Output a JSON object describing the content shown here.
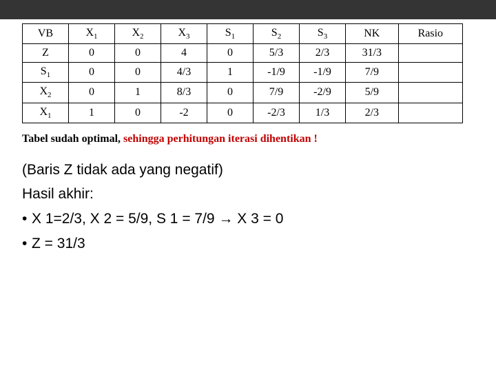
{
  "table": {
    "headers": [
      "VB",
      "X1",
      "X2",
      "X3",
      "S1",
      "S2",
      "S3",
      "NK",
      "Rasio"
    ],
    "rows": [
      [
        "Z",
        "0",
        "0",
        "4",
        "0",
        "5/3",
        "2/3",
        "31/3",
        ""
      ],
      [
        "S1",
        "0",
        "0",
        "4/3",
        "1",
        "-1/9",
        "-1/9",
        "7/9",
        ""
      ],
      [
        "X2",
        "0",
        "1",
        "8/3",
        "0",
        "7/9",
        "-2/9",
        "5/9",
        ""
      ],
      [
        "X1",
        "1",
        "0",
        "-2",
        "0",
        "-2/3",
        "1/3",
        "2/3",
        ""
      ]
    ]
  },
  "caption": {
    "lead": "Tabel sudah optimal, ",
    "warn": "sehingga perhitungan iterasi dihentikan !"
  },
  "notes": {
    "l1": "(Baris Z tidak ada yang negatif)",
    "l2": "Hasil akhir:",
    "l3": "X 1=2/3, X 2 = 5/9, S 1 = 7/9 → X 3 = 0",
    "l4": "Z = 31/3"
  },
  "style": {
    "header_bar_color": "#343434",
    "warn_color": "#c00000",
    "border_color": "#000000",
    "body_font": "Times New Roman",
    "notes_font": "Arial"
  }
}
